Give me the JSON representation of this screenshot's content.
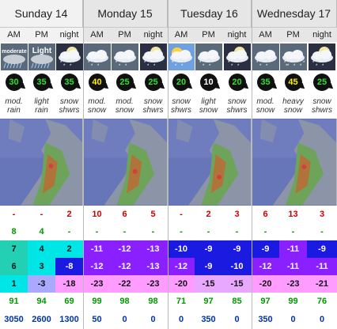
{
  "days": [
    {
      "name": "Sunday 14",
      "periods": [
        "AM",
        "PM",
        "night"
      ]
    },
    {
      "name": "Monday 15",
      "periods": [
        "AM",
        "PM",
        "night"
      ]
    },
    {
      "name": "Tuesday 16",
      "periods": [
        "AM",
        "PM",
        "night"
      ]
    },
    {
      "name": "Wednesday 17",
      "periods": [
        "AM",
        "PM",
        "night"
      ]
    }
  ],
  "columns": [
    {
      "day": 0,
      "icon": "moderate-rain-icon",
      "icon_text": "moderate",
      "wind": "30",
      "wind_color": "#33dd33",
      "summary": [
        "mod.",
        "rain"
      ],
      "rain": "-",
      "snow_mm": "8",
      "t_max": "7",
      "t_min": "6",
      "t_fl": "1",
      "humidity": "91",
      "freezing_level": "3050"
    },
    {
      "day": 0,
      "icon": "light-rain-icon",
      "icon_text": "Light",
      "wind": "35",
      "wind_color": "#33dd33",
      "summary": [
        "light",
        "rain"
      ],
      "rain": "-",
      "snow_mm": "4",
      "t_max": "4",
      "t_min": "3",
      "t_fl": "-3",
      "humidity": "94",
      "freezing_level": "2600"
    },
    {
      "day": 0,
      "icon": "snow-showers-night-icon",
      "icon_text": "",
      "wind": "35",
      "wind_color": "#33dd33",
      "summary": [
        "snow",
        "shwrs"
      ],
      "rain": "2",
      "snow_mm": "-",
      "t_max": "2",
      "t_min": "-8",
      "t_fl": "-18",
      "humidity": "69",
      "freezing_level": "1300"
    },
    {
      "day": 1,
      "icon": "mod-snow-icon",
      "icon_text": "",
      "wind": "40",
      "wind_color": "#ffee00",
      "summary": [
        "mod.",
        "snow"
      ],
      "rain": "10",
      "snow_mm": "-",
      "t_max": "-11",
      "t_min": "-12",
      "t_fl": "-23",
      "humidity": "99",
      "freezing_level": "50"
    },
    {
      "day": 1,
      "icon": "mod-snow-icon",
      "icon_text": "",
      "wind": "25",
      "wind_color": "#33dd33",
      "summary": [
        "mod.",
        "snow"
      ],
      "rain": "6",
      "snow_mm": "-",
      "t_max": "-12",
      "t_min": "-12",
      "t_fl": "-22",
      "humidity": "98",
      "freezing_level": "0"
    },
    {
      "day": 1,
      "icon": "snow-showers-night-icon",
      "icon_text": "",
      "wind": "25",
      "wind_color": "#33dd33",
      "summary": [
        "snow",
        "shwrs"
      ],
      "rain": "5",
      "snow_mm": "-",
      "t_max": "-13",
      "t_min": "-13",
      "t_fl": "-23",
      "humidity": "98",
      "freezing_level": "0"
    },
    {
      "day": 2,
      "icon": "snow-showers-sun-icon",
      "icon_text": "",
      "wind": "20",
      "wind_color": "#33dd33",
      "summary": [
        "snow",
        "shwrs"
      ],
      "rain": "-",
      "snow_mm": "-",
      "t_max": "-10",
      "t_min": "-12",
      "t_fl": "-20",
      "humidity": "71",
      "freezing_level": "0"
    },
    {
      "day": 2,
      "icon": "light-snow-icon",
      "icon_text": "",
      "wind": "10",
      "wind_color": "#ffffff",
      "summary": [
        "light",
        "snow"
      ],
      "rain": "2",
      "snow_mm": "-",
      "t_max": "-9",
      "t_min": "-9",
      "t_fl": "-15",
      "humidity": "97",
      "freezing_level": "350"
    },
    {
      "day": 2,
      "icon": "snow-showers-night-icon",
      "icon_text": "",
      "wind": "20",
      "wind_color": "#33dd33",
      "summary": [
        "snow",
        "shwrs"
      ],
      "rain": "3",
      "snow_mm": "-",
      "t_max": "-9",
      "t_min": "-10",
      "t_fl": "-15",
      "humidity": "85",
      "freezing_level": "0"
    },
    {
      "day": 3,
      "icon": "mod-snow-icon",
      "icon_text": "",
      "wind": "35",
      "wind_color": "#33dd33",
      "summary": [
        "mod.",
        "snow"
      ],
      "rain": "6",
      "snow_mm": "-",
      "t_max": "-9",
      "t_min": "-12",
      "t_fl": "-20",
      "humidity": "97",
      "freezing_level": "350"
    },
    {
      "day": 3,
      "icon": "heavy-snow-icon",
      "icon_text": "",
      "wind": "45",
      "wind_color": "#ffee00",
      "summary": [
        "heavy",
        "snow"
      ],
      "rain": "13",
      "snow_mm": "-",
      "t_max": "-11",
      "t_min": "-11",
      "t_fl": "-23",
      "humidity": "99",
      "freezing_level": "0"
    },
    {
      "day": 3,
      "icon": "snow-showers-night-icon",
      "icon_text": "",
      "wind": "25",
      "wind_color": "#33dd33",
      "summary": [
        "snow",
        "shwrs"
      ],
      "rain": "3",
      "snow_mm": "-",
      "t_max": "-9",
      "t_min": "-11",
      "t_fl": "-21",
      "humidity": "76",
      "freezing_level": "0"
    }
  ],
  "colors": {
    "t_max_bg": [
      "#24d0b3",
      "#00e6e6",
      "#00e6e6",
      "#8a1fff",
      "#8a1fff",
      "#8a1fff",
      "#1a1ae0",
      "#1a1ae0",
      "#1a1ae0",
      "#1a1ae0",
      "#8a1fff",
      "#1a1ae0"
    ],
    "t_min_bg": [
      "#24d0b3",
      "#00e6e6",
      "#1a1ae0",
      "#8a1fff",
      "#8a1fff",
      "#8a1fff",
      "#8a1fff",
      "#1a1ae0",
      "#1a1ae0",
      "#8a1fff",
      "#8a1fff",
      "#8a1fff"
    ],
    "t_fl_bg": [
      "#00e6e6",
      "#a9a9ff",
      "#ff9cff",
      "#ff9cff",
      "#ff9cff",
      "#ff9cff",
      "#ff9cff",
      "#e8a8ff",
      "#e8a8ff",
      "#ff9cff",
      "#ff9cff",
      "#ff9cff"
    ],
    "rain_text": "#cc0000",
    "snow_text": "#009900",
    "humidity_text": "#009900",
    "freezing_text": "#0033aa",
    "map_sea": "#5e6fb0"
  }
}
